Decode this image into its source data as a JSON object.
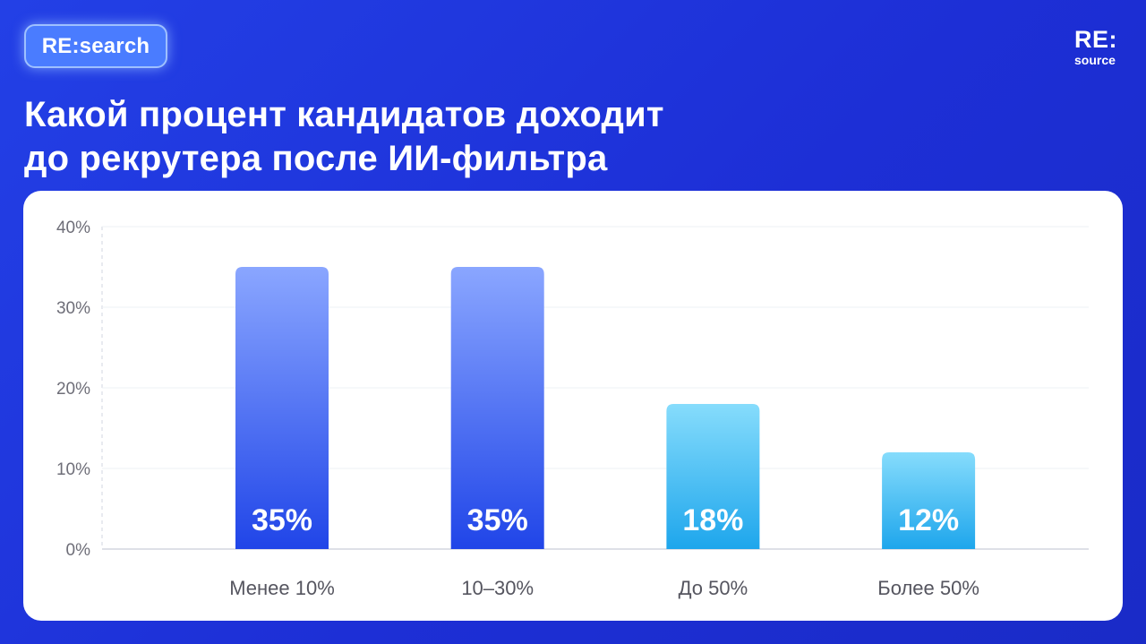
{
  "header": {
    "badge_label": "RE:search",
    "logo_top": "RE:",
    "logo_bottom": "source",
    "title_line1": "Какой процент кандидатов доходит",
    "title_line2": "до рекрутера после ИИ-фильтра"
  },
  "colors": {
    "background": "#1f35dc",
    "bar_dark_top": "#8aa6ff",
    "bar_dark_bottom": "#2045e8",
    "bar_light_top": "#86dcfc",
    "bar_light_bottom": "#1ea6ec"
  },
  "chart_data": {
    "type": "bar",
    "categories": [
      "Менее 10%",
      "10–30%",
      "До 50%",
      "Более 50%"
    ],
    "values": [
      35,
      35,
      18,
      12
    ],
    "value_labels": [
      "35%",
      "35%",
      "18%",
      "12%"
    ],
    "bar_styles": [
      "dark",
      "dark",
      "light",
      "light"
    ],
    "ylim": [
      0,
      40
    ],
    "yticks": [
      0,
      10,
      20,
      30,
      40
    ],
    "ytick_labels": [
      "0%",
      "10%",
      "20%",
      "30%",
      "40%"
    ],
    "grid": true,
    "legend": "none"
  }
}
